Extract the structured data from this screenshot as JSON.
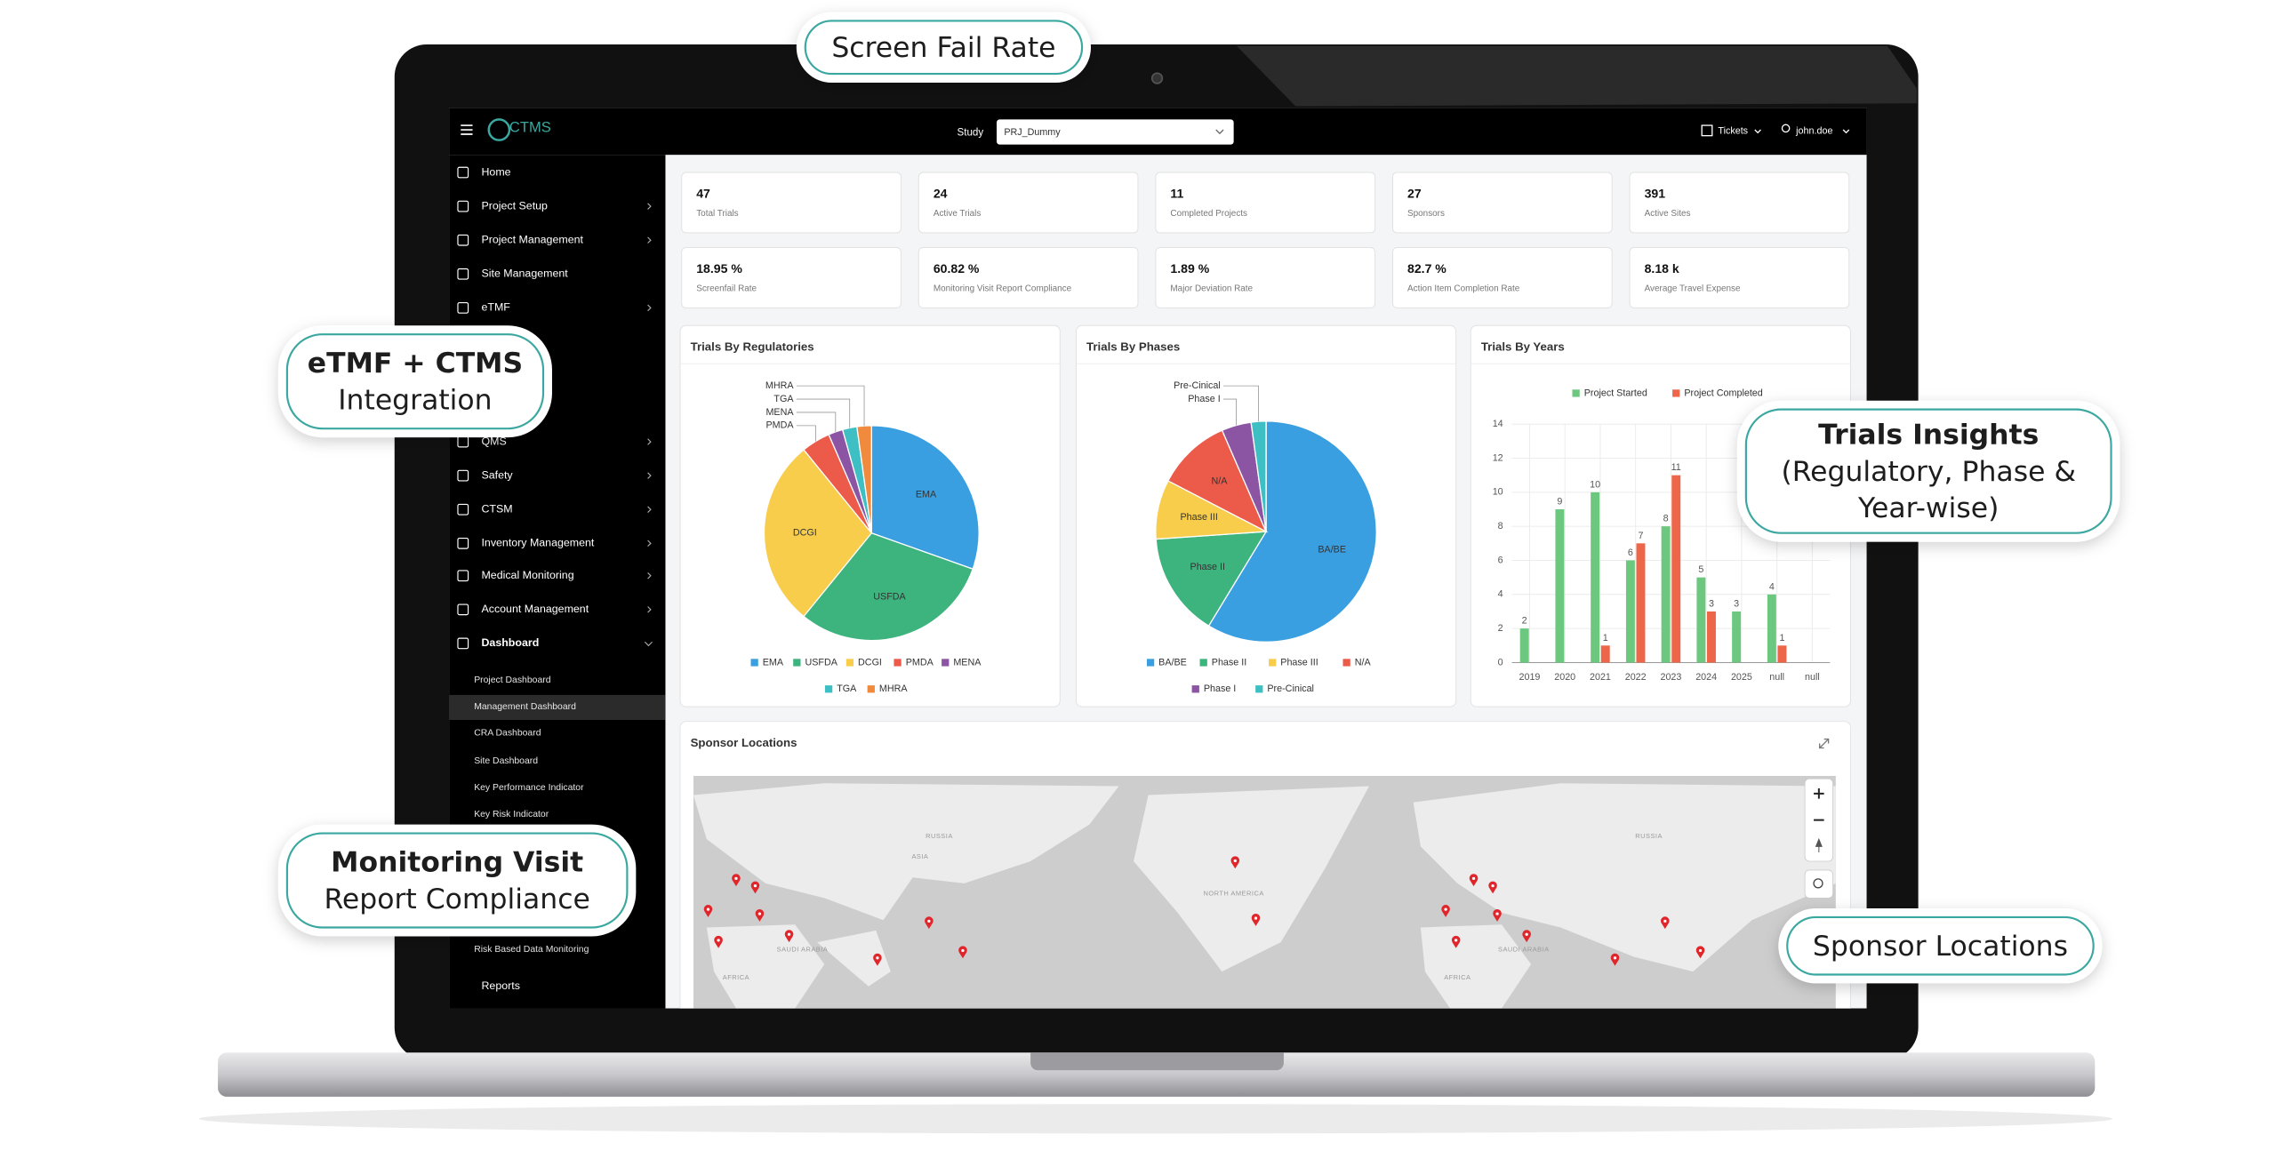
{
  "callouts": [
    {
      "lines": [
        "Screen Fail Rate"
      ]
    },
    {
      "lines": [
        "eTMF + CTMS",
        "Integration"
      ]
    },
    {
      "lines": [
        "Trials Insights",
        "(Regulatory, Phase &",
        "Year-wise)"
      ]
    },
    {
      "lines": [
        "Monitoring Visit",
        "Report Compliance"
      ]
    },
    {
      "lines": [
        "Sponsor Locations"
      ]
    }
  ],
  "topbar": {
    "logo": "CTMS",
    "study_label": "Study",
    "study_value": "PRJ_Dummy",
    "tickets": "Tickets",
    "user": "john.doe"
  },
  "sidebar": {
    "items": [
      "Home",
      "Project Setup",
      "Project Management",
      "Site Management",
      "eTMF",
      "QMS",
      "Safety",
      "CTSM",
      "Inventory Management",
      "Medical Monitoring",
      "Account Management",
      "Dashboard"
    ],
    "subitems": [
      "Project Dashboard",
      "Management Dashboard",
      "CRA Dashboard",
      "Site Dashboard",
      "Key Performance Indicator",
      "Key Risk Indicator",
      "Risk Based Data Monitoring"
    ],
    "reports": "Reports"
  },
  "kpis": [
    {
      "value": "47",
      "label": "Total Trials"
    },
    {
      "value": "24",
      "label": "Active Trials"
    },
    {
      "value": "11",
      "label": "Completed Projects"
    },
    {
      "value": "27",
      "label": "Sponsors"
    },
    {
      "value": "391",
      "label": "Active Sites"
    },
    {
      "value": "18.95 %",
      "label": "Screenfail Rate"
    },
    {
      "value": "60.82 %",
      "label": "Monitoring Visit Report Compliance"
    },
    {
      "value": "1.89 %",
      "label": "Major Deviation Rate"
    },
    {
      "value": "82.7 %",
      "label": "Action Item Completion Rate"
    },
    {
      "value": "8.18 k",
      "label": "Average Travel Expense"
    }
  ],
  "chart_data": [
    {
      "type": "pie",
      "title": "Trials By Regulatories",
      "categories": [
        "EMA",
        "USFDA",
        "DCGI",
        "PMDA",
        "MENA",
        "TGA",
        "MHRA"
      ],
      "values": [
        14,
        14,
        13,
        2,
        1,
        1,
        1
      ],
      "colors": [
        "#3a9fe0",
        "#3db37e",
        "#f7cd4b",
        "#ec5a4a",
        "#8c55a4",
        "#3ebfc3",
        "#f08a3c"
      ]
    },
    {
      "type": "pie",
      "title": "Trials By Phases",
      "categories": [
        "BA/BE",
        "Phase II",
        "Phase III",
        "N/A",
        "Phase I",
        "Pre-Cinical"
      ],
      "values": [
        27,
        7,
        4,
        5,
        2,
        1
      ],
      "colors": [
        "#3a9fe0",
        "#3db37e",
        "#f7cd4b",
        "#ec5a4a",
        "#8c55a4",
        "#3ebfc3"
      ]
    },
    {
      "type": "bar",
      "title": "Trials By Years",
      "categories": [
        "2019",
        "2020",
        "2021",
        "2022",
        "2023",
        "2024",
        "2025",
        "null",
        "null"
      ],
      "series": [
        {
          "name": "Project Started",
          "color": "#6cc77f",
          "values": [
            2,
            9,
            10,
            6,
            8,
            5,
            3,
            4,
            null
          ]
        },
        {
          "name": "Project Completed",
          "color": "#ee6649",
          "values": [
            null,
            null,
            1,
            7,
            11,
            3,
            null,
            1,
            null
          ]
        }
      ],
      "ylim": [
        0,
        14
      ],
      "yticks": [
        0,
        2,
        4,
        6,
        8,
        10,
        12,
        14
      ],
      "grid": true
    }
  ],
  "map": {
    "title": "Sponsor Locations",
    "labels": [
      "RUSSIA",
      "NORTH AMERICA",
      "ASIA",
      "AFRICA",
      "SAUDI ARABIA",
      "RUSSIA",
      "AFRICA",
      "SAUDI ARABIA"
    ]
  }
}
